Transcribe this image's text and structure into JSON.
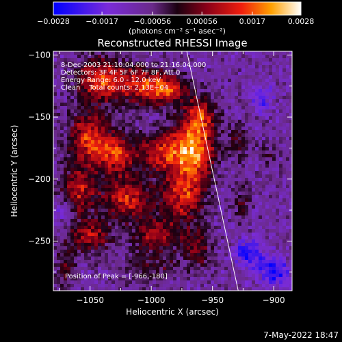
{
  "chart_data": {
    "type": "heatmap",
    "title": "Reconstructed RHESSI Image",
    "xlabel": "Heliocentric X (arcsec)",
    "ylabel": "Heliocentric Y (arcsec)",
    "xlim": [
      -1080,
      -885
    ],
    "ylim": [
      -290,
      -97
    ],
    "x_ticks": [
      -1050,
      -1000,
      -950,
      -900
    ],
    "x_tick_labels": [
      "−1050",
      "−1000",
      "−950",
      "−900"
    ],
    "y_ticks": [
      -100,
      -150,
      -200,
      -250
    ],
    "y_tick_labels": [
      "−100",
      "−150",
      "−200",
      "−250"
    ],
    "colorbar": {
      "range": [
        -0.0028,
        0.0028
      ],
      "ticks": [
        -0.0028,
        -0.0017,
        -0.00056,
        0.00056,
        0.0017,
        0.0028
      ],
      "tick_labels": [
        "−0.0028",
        "−0.0017",
        "−0.00056",
        "0.00056",
        "0.0017",
        "0.0028"
      ],
      "unit_label": "(photons cm⁻² s⁻¹ asec⁻²)"
    },
    "annotations": [
      "8-Dec-2003 21:10:04.000 to 21:16:04.000",
      "Detectors: 3F 4F 5F 6F 7F 8F, Att 0",
      "Energy Range: 6.0 - 12.0 keV",
      "Clean    Total counts: 2.13E+04"
    ],
    "peak_label": "Position of Peak = [-966,-180]",
    "peak_position": [
      -966,
      -180
    ],
    "limb_line": [
      [
        -971,
        -97
      ],
      [
        -929,
        -290
      ]
    ],
    "emission_blobs": [
      {
        "x": -1040,
        "y": -120,
        "sx": 14,
        "sy": 12,
        "amp": 0.0024
      },
      {
        "x": -1005,
        "y": -125,
        "sx": 13,
        "sy": 10,
        "amp": 0.0021
      },
      {
        "x": -985,
        "y": -128,
        "sx": 10,
        "sy": 8,
        "amp": 0.0018
      },
      {
        "x": -1050,
        "y": -168,
        "sx": 12,
        "sy": 16,
        "amp": 0.0022
      },
      {
        "x": -1028,
        "y": -180,
        "sx": 10,
        "sy": 10,
        "amp": 0.002
      },
      {
        "x": -992,
        "y": -178,
        "sx": 14,
        "sy": 12,
        "amp": 0.0018
      },
      {
        "x": -966,
        "y": -180,
        "sx": 12,
        "sy": 18,
        "amp": 0.0028
      },
      {
        "x": -960,
        "y": -150,
        "sx": 9,
        "sy": 12,
        "amp": 0.0019
      },
      {
        "x": -1060,
        "y": -210,
        "sx": 10,
        "sy": 12,
        "amp": 0.0018
      },
      {
        "x": -1020,
        "y": -215,
        "sx": 14,
        "sy": 12,
        "amp": 0.0021
      },
      {
        "x": -975,
        "y": -215,
        "sx": 12,
        "sy": 12,
        "amp": 0.0019
      },
      {
        "x": -1050,
        "y": -245,
        "sx": 12,
        "sy": 10,
        "amp": 0.0017
      },
      {
        "x": -995,
        "y": -245,
        "sx": 14,
        "sy": 10,
        "amp": 0.0016
      },
      {
        "x": -962,
        "y": -255,
        "sx": 8,
        "sy": 12,
        "amp": 0.0013
      },
      {
        "x": -1000,
        "y": -272,
        "sx": 16,
        "sy": 8,
        "amp": 0.0009
      },
      {
        "x": -1070,
        "y": -270,
        "sx": 6,
        "sy": 12,
        "amp": 0.001
      },
      {
        "x": -930,
        "y": -170,
        "sx": 6,
        "sy": 10,
        "amp": 0.001
      },
      {
        "x": -925,
        "y": -220,
        "sx": 5,
        "sy": 10,
        "amp": 0.0009
      },
      {
        "x": -905,
        "y": -180,
        "sx": 5,
        "sy": 8,
        "amp": 0.0006
      },
      {
        "x": -920,
        "y": -260,
        "sx": 8,
        "sy": 8,
        "amp": -0.0016
      },
      {
        "x": -900,
        "y": -275,
        "sx": 8,
        "sy": 8,
        "amp": -0.0018
      },
      {
        "x": -910,
        "y": -135,
        "sx": 6,
        "sy": 8,
        "amp": -0.0012
      },
      {
        "x": -1072,
        "y": -225,
        "sx": 6,
        "sy": 8,
        "amp": -0.0008
      }
    ],
    "colors": {
      "background": "#000000",
      "text": "#ffffff"
    }
  },
  "footer": {
    "timestamp": "7-May-2022 18:47"
  }
}
